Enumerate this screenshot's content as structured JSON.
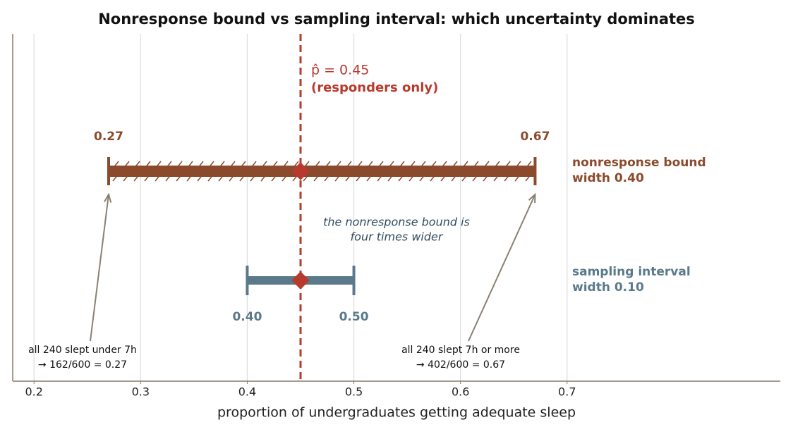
{
  "chart_data": {
    "type": "interval",
    "title": "Nonresponse bound vs sampling interval: which uncertainty dominates",
    "xlabel": "proportion of undergraduates getting adequate sleep",
    "xlim": [
      0.18,
      0.9
    ],
    "xticks": [
      0.2,
      0.3,
      0.4,
      0.5,
      0.6,
      0.7
    ],
    "grid": true,
    "estimate": 0.45,
    "estimate_color": "#b83a2e",
    "estimate_label": "p̂ = 0.45",
    "estimate_note": "(responders only)",
    "series": [
      {
        "name": "nonresponse bound",
        "subtitle": "width 0.40",
        "color": "#8b4a2b",
        "values": [
          0.27,
          0.67
        ]
      },
      {
        "name": "sampling interval",
        "subtitle": "width 0.10",
        "color": "#5a7a8c",
        "values": [
          0.4,
          0.5
        ],
        "value_labels": [
          "0.40",
          "0.50"
        ]
      }
    ],
    "comparison_note": [
      "the nonresponse bound is",
      "four times wider"
    ],
    "low_note": [
      "all 240 slept under 7h",
      "→ 162/600 = 0.27"
    ],
    "high_note": [
      "all 240 slept 7h or more",
      "→ 402/600 = 0.67"
    ]
  }
}
